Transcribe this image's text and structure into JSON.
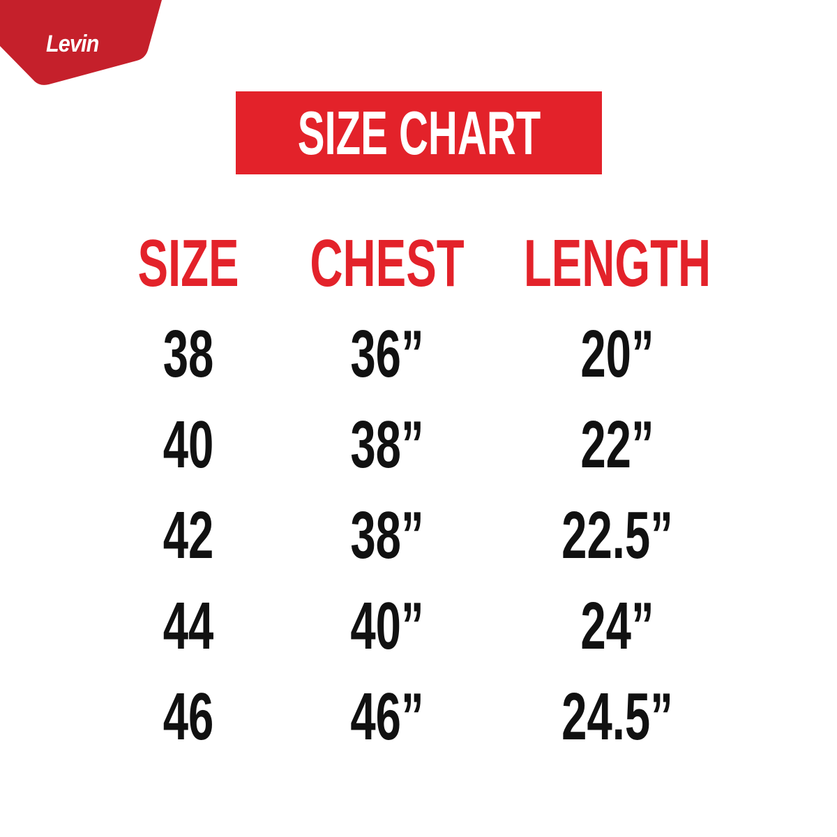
{
  "brand": {
    "logo_text": "Levin",
    "color": "#c5202b"
  },
  "title": "SIZE CHART",
  "accent_color": "#e3222a",
  "table": {
    "headers": [
      "SIZE",
      "CHEST",
      "LENGTH"
    ],
    "rows": [
      [
        "38",
        "36”",
        "20”"
      ],
      [
        "40",
        "38”",
        "22”"
      ],
      [
        "42",
        "38”",
        "22.5”"
      ],
      [
        "44",
        "40”",
        "24”"
      ],
      [
        "46",
        "46”",
        "24.5”"
      ]
    ]
  }
}
